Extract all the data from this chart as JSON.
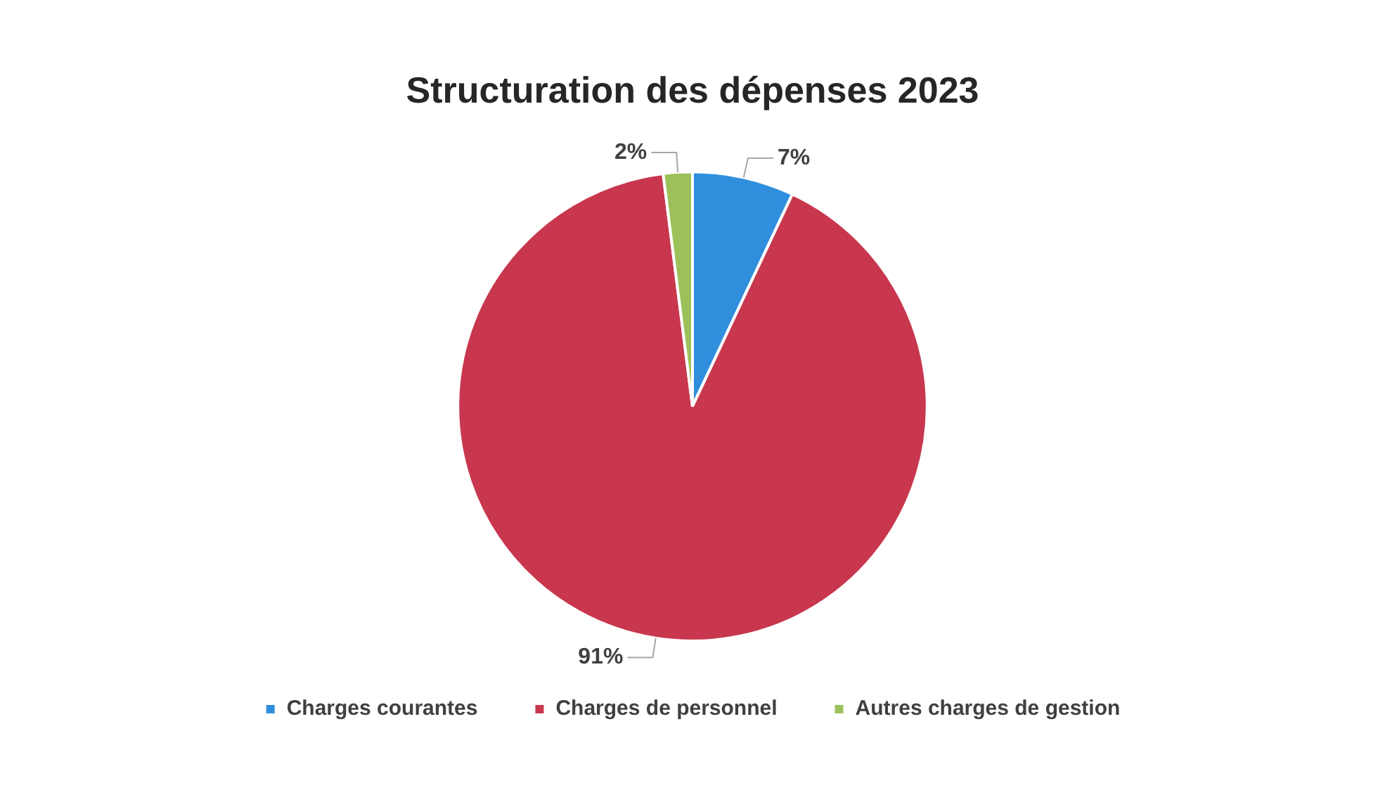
{
  "chart_data": {
    "type": "pie",
    "title": "Structuration des dépenses 2023",
    "categories": [
      "Charges courantes",
      "Charges de personnel",
      "Autres charges de gestion"
    ],
    "values": [
      7,
      91,
      2
    ],
    "colors": [
      "#2f8fdc",
      "#c8374e",
      "#9cc15a"
    ],
    "value_labels": [
      "7%",
      "91%",
      "2%"
    ],
    "legend": "bottom"
  }
}
